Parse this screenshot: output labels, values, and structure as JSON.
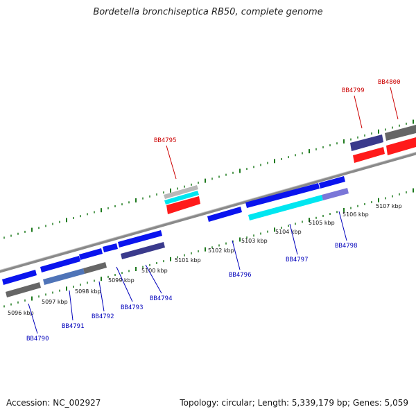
{
  "title": "Bordetella bronchiseptica RB50, complete genome",
  "footer": {
    "accession": "Accession: NC_002927",
    "summary": "Topology: circular; Length: 5,339,179 bp; Genes: 5,059"
  },
  "colors": {
    "backbone": "#8a8a8a",
    "tick": "#1e7a1e",
    "label_fwd": "#cc0000",
    "label_rev": "#0000bb"
  },
  "kbp_labels": [
    "5096 kbp",
    "5097 kbp",
    "5098 kbp",
    "5099 kbp",
    "5100 kbp",
    "5101 kbp",
    "5102 kbp",
    "5103 kbp",
    "5104 kbp",
    "5105 kbp",
    "5106 kbp",
    "5107 kbp"
  ],
  "gene_labels": [
    {
      "id": "BB4790",
      "strand": "reverse"
    },
    {
      "id": "BB4791",
      "strand": "reverse"
    },
    {
      "id": "BB4792",
      "strand": "reverse"
    },
    {
      "id": "BB4793",
      "strand": "reverse"
    },
    {
      "id": "BB4794",
      "strand": "reverse"
    },
    {
      "id": "BB4795",
      "strand": "forward"
    },
    {
      "id": "BB4796",
      "strand": "reverse"
    },
    {
      "id": "BB4797",
      "strand": "reverse"
    },
    {
      "id": "BB4798",
      "strand": "reverse"
    },
    {
      "id": "BB4799",
      "strand": "forward"
    },
    {
      "id": "BB4800",
      "strand": "forward"
    }
  ]
}
